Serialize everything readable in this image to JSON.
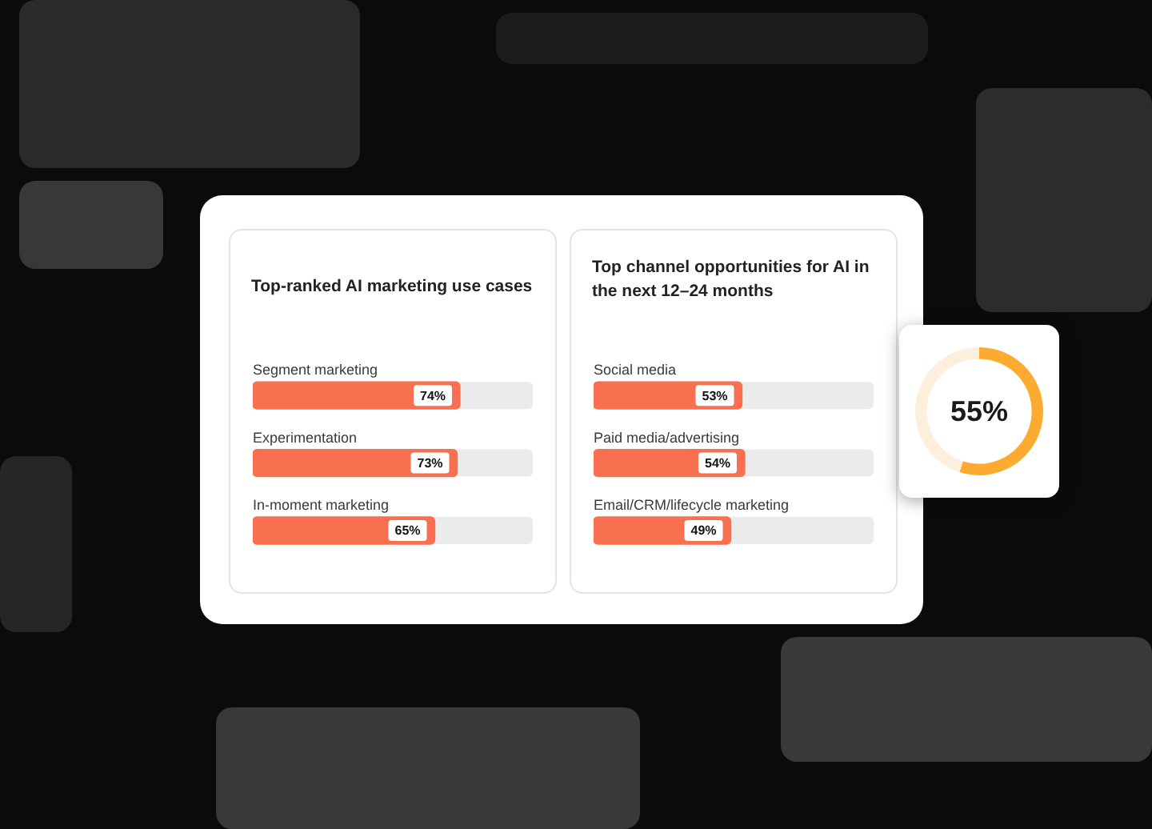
{
  "chart_data": [
    {
      "type": "bar",
      "orientation": "horizontal",
      "title": "Top-ranked AI marketing use cases",
      "categories": [
        "Segment marketing",
        "Experimentation",
        "In-moment marketing"
      ],
      "values": [
        74,
        73,
        65
      ],
      "value_labels": [
        "74%",
        "73%",
        "65%"
      ],
      "color": "#f87050",
      "xlim": [
        0,
        100
      ],
      "tick_labels": "y"
    },
    {
      "type": "bar",
      "orientation": "horizontal",
      "title": "Top channel opportunities for AI in the next 12–24 months",
      "categories": [
        "Social media",
        "Paid media/advertising",
        "Email/CRM/lifecycle marketing"
      ],
      "values": [
        53,
        54,
        49
      ],
      "value_labels": [
        "53%",
        "54%",
        "49%"
      ],
      "color": "#f87050",
      "xlim": [
        0,
        100
      ],
      "tick_labels": "y"
    },
    {
      "type": "donut",
      "categories": [
        null,
        null
      ],
      "values": [
        55,
        45
      ],
      "colors": [
        "#fdab30",
        "#fdefdc"
      ],
      "value_labels": [
        "55%",
        null
      ]
    }
  ]
}
